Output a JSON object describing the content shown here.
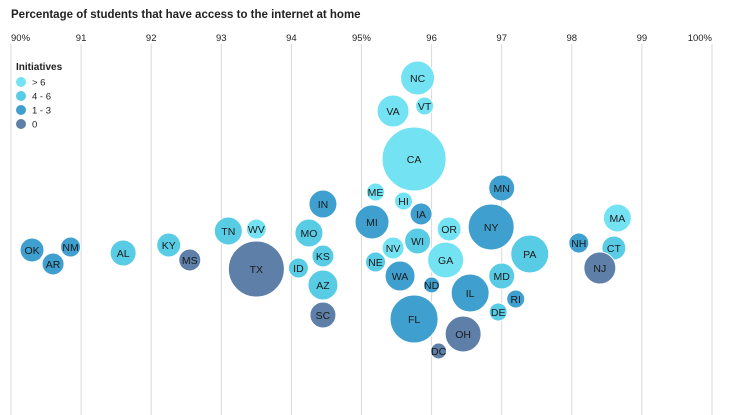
{
  "chart_data": {
    "type": "bubble",
    "title": "Percentage of students that have access to the internet at home",
    "xlim": [
      90,
      100
    ],
    "x_ticks": [
      {
        "value": 90,
        "label": "90%"
      },
      {
        "value": 91,
        "label": "91"
      },
      {
        "value": 92,
        "label": "92"
      },
      {
        "value": 93,
        "label": "93"
      },
      {
        "value": 94,
        "label": "94"
      },
      {
        "value": 95,
        "label": "95%"
      },
      {
        "value": 96,
        "label": "96"
      },
      {
        "value": 97,
        "label": "97"
      },
      {
        "value": 98,
        "label": "98"
      },
      {
        "value": 99,
        "label": "99"
      },
      {
        "value": 100,
        "label": "100%"
      }
    ],
    "grid": true,
    "legend": {
      "title": "Initiatives",
      "placement": "top-left",
      "entries": [
        {
          "key": "gt6",
          "label": "> 6",
          "color": "#73e3f3"
        },
        {
          "key": "4to6",
          "label": "4 - 6",
          "color": "#58cbe5"
        },
        {
          "key": "1to3",
          "label": "1 - 3",
          "color": "#3f9fce"
        },
        {
          "key": "zero",
          "label": "0",
          "color": "#5d7fa8"
        }
      ]
    },
    "points": [
      {
        "state": "NC",
        "x": 95.8,
        "category": "gt6",
        "size": 17
      },
      {
        "state": "VA",
        "x": 95.45,
        "category": "gt6",
        "size": 16
      },
      {
        "state": "VT",
        "x": 95.9,
        "category": "gt6",
        "size": 9
      },
      {
        "state": "CA",
        "x": 95.75,
        "category": "gt6",
        "size": 32
      },
      {
        "state": "MN",
        "x": 97.0,
        "category": "1to3",
        "size": 13
      },
      {
        "state": "MA",
        "x": 98.65,
        "category": "gt6",
        "size": 14
      },
      {
        "state": "ME",
        "x": 95.2,
        "category": "gt6",
        "size": 9
      },
      {
        "state": "HI",
        "x": 95.6,
        "category": "gt6",
        "size": 9
      },
      {
        "state": "IN",
        "x": 94.45,
        "category": "1to3",
        "size": 14
      },
      {
        "state": "IA",
        "x": 95.85,
        "category": "1to3",
        "size": 11
      },
      {
        "state": "MI",
        "x": 95.15,
        "category": "1to3",
        "size": 17
      },
      {
        "state": "OR",
        "x": 96.25,
        "category": "gt6",
        "size": 12
      },
      {
        "state": "NY",
        "x": 96.85,
        "category": "1to3",
        "size": 23
      },
      {
        "state": "TN",
        "x": 93.1,
        "category": "4to6",
        "size": 14
      },
      {
        "state": "WV",
        "x": 93.5,
        "category": "gt6",
        "size": 10
      },
      {
        "state": "MO",
        "x": 94.25,
        "category": "4to6",
        "size": 14
      },
      {
        "state": "WI",
        "x": 95.8,
        "category": "4to6",
        "size": 13
      },
      {
        "state": "NH",
        "x": 98.1,
        "category": "1to3",
        "size": 10
      },
      {
        "state": "CT",
        "x": 98.6,
        "category": "4to6",
        "size": 12
      },
      {
        "state": "OK",
        "x": 90.3,
        "category": "1to3",
        "size": 12
      },
      {
        "state": "NM",
        "x": 90.85,
        "category": "1to3",
        "size": 10
      },
      {
        "state": "AL",
        "x": 91.6,
        "category": "4to6",
        "size": 13
      },
      {
        "state": "KY",
        "x": 92.25,
        "category": "4to6",
        "size": 12
      },
      {
        "state": "KS",
        "x": 94.45,
        "category": "4to6",
        "size": 11
      },
      {
        "state": "NV",
        "x": 95.45,
        "category": "gt6",
        "size": 11
      },
      {
        "state": "GA",
        "x": 96.2,
        "category": "gt6",
        "size": 18
      },
      {
        "state": "PA",
        "x": 97.4,
        "category": "4to6",
        "size": 19
      },
      {
        "state": "AR",
        "x": 90.6,
        "category": "1to3",
        "size": 11
      },
      {
        "state": "MS",
        "x": 92.55,
        "category": "zero",
        "size": 11
      },
      {
        "state": "TX",
        "x": 93.5,
        "category": "zero",
        "size": 28
      },
      {
        "state": "ID",
        "x": 94.1,
        "category": "4to6",
        "size": 10
      },
      {
        "state": "NE",
        "x": 95.2,
        "category": "4to6",
        "size": 10
      },
      {
        "state": "WA",
        "x": 95.55,
        "category": "1to3",
        "size": 15
      },
      {
        "state": "MD",
        "x": 97.0,
        "category": "4to6",
        "size": 13
      },
      {
        "state": "NJ",
        "x": 98.4,
        "category": "zero",
        "size": 16
      },
      {
        "state": "AZ",
        "x": 94.45,
        "category": "4to6",
        "size": 15
      },
      {
        "state": "ND",
        "x": 96.0,
        "category": "1to3",
        "size": 8
      },
      {
        "state": "IL",
        "x": 96.55,
        "category": "1to3",
        "size": 19
      },
      {
        "state": "RI",
        "x": 97.2,
        "category": "1to3",
        "size": 9
      },
      {
        "state": "DE",
        "x": 96.95,
        "category": "4to6",
        "size": 9
      },
      {
        "state": "SC",
        "x": 94.45,
        "category": "zero",
        "size": 13
      },
      {
        "state": "FL",
        "x": 95.75,
        "category": "1to3",
        "size": 24
      },
      {
        "state": "OH",
        "x": 96.45,
        "category": "zero",
        "size": 18
      },
      {
        "state": "DC",
        "x": 96.1,
        "category": "zero",
        "size": 8
      }
    ]
  }
}
